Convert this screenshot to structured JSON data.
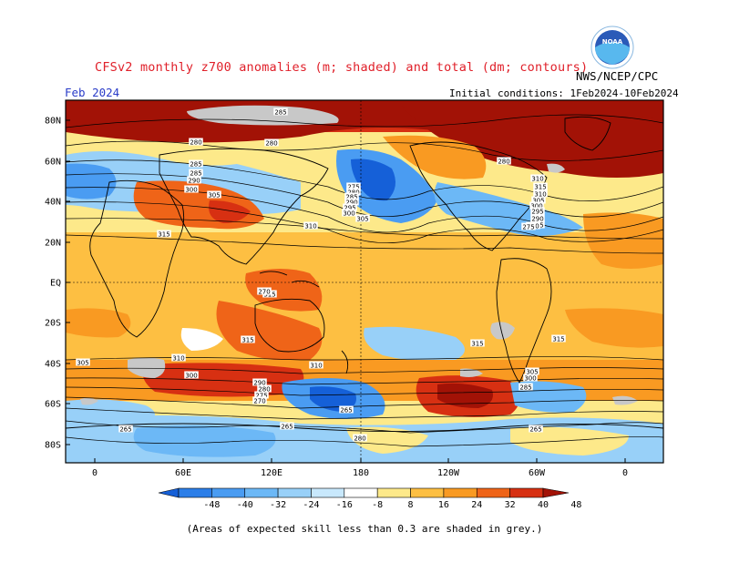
{
  "header": {
    "title": "CFSv2 monthly z700 anomalies (m; shaded) and total (dm; contours)",
    "month": "Feb 2024",
    "agency": "NWS/NCEP/CPC",
    "initial_conditions": "Initial conditions: 1Feb2024-10Feb2024",
    "logo_text": "NOAA"
  },
  "axes": {
    "lat_labels": [
      "80N",
      "60N",
      "40N",
      "20N",
      "EQ",
      "20S",
      "40S",
      "60S",
      "80S"
    ],
    "lon_labels": [
      "0",
      "60E",
      "120E",
      "180",
      "120W",
      "60W",
      "0"
    ]
  },
  "colorbar": {
    "ticks": [
      "-48",
      "-40",
      "-32",
      "-24",
      "-16",
      "-8",
      "8",
      "16",
      "24",
      "32",
      "40",
      "48"
    ],
    "colors": [
      "#1560d8",
      "#2c7ee8",
      "#4a9cf2",
      "#6cb8f6",
      "#98d0f8",
      "#c8e8fc",
      "#ffffff",
      "#fde98a",
      "#fdbf42",
      "#f99a22",
      "#ef6418",
      "#d73012",
      "#a21206"
    ]
  },
  "contour_labels": [
    "285",
    "280",
    "280",
    "280",
    "285",
    "285",
    "290",
    "300",
    "305",
    "310",
    "315",
    "315",
    "275",
    "280",
    "285",
    "290",
    "295",
    "300",
    "305",
    "310",
    "315",
    "310",
    "305",
    "300",
    "295",
    "290",
    "285",
    "280",
    "275",
    "270",
    "265",
    "265",
    "265",
    "280",
    "285",
    "300",
    "305",
    "310",
    "315",
    "315",
    "315",
    "310",
    "305",
    "300",
    "290",
    "280",
    "275",
    "270",
    "265"
  ],
  "footnote": "(Areas of expected skill less than 0.3 are shaded in grey.)"
}
